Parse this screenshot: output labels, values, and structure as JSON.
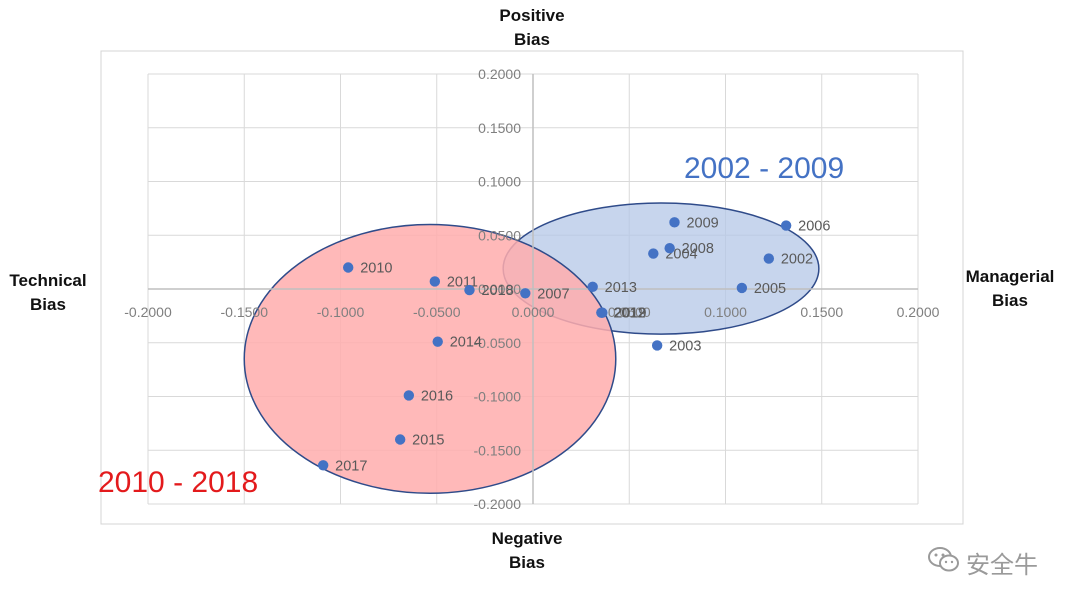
{
  "labels": {
    "top": "Positive\nBias",
    "bottom": "Negative\nBias",
    "left": "Technical\nBias",
    "right": "Managerial\nBias"
  },
  "watermark": {
    "text": "安全牛",
    "icon": "wechat-icon"
  },
  "chart_data": {
    "type": "scatter",
    "xlim": [
      -0.2,
      0.2
    ],
    "ylim": [
      -0.2,
      0.2
    ],
    "grid": true,
    "x_ticks": [
      "-0.2000",
      "-0.1500",
      "-0.1000",
      "-0.0500",
      "0.0000",
      "0.0500",
      "0.1000",
      "0.1500",
      "0.2000"
    ],
    "y_ticks": [
      "0.2000",
      "0.1500",
      "0.1000",
      "0.0500",
      "0.0000",
      "-0.0500",
      "-0.1000",
      "-0.1500",
      "-0.2000"
    ],
    "point_color": "#4472C4",
    "points": [
      {
        "label": "2002",
        "x": 0.1225,
        "y": 0.0283
      },
      {
        "label": "2003",
        "x": 0.0645,
        "y": -0.0525
      },
      {
        "label": "2004",
        "x": 0.0625,
        "y": 0.033
      },
      {
        "label": "2005",
        "x": 0.1085,
        "y": 0.001
      },
      {
        "label": "2006",
        "x": 0.1315,
        "y": 0.059
      },
      {
        "label": "2007",
        "x": -0.004,
        "y": -0.004
      },
      {
        "label": "2008",
        "x": 0.071,
        "y": 0.038
      },
      {
        "label": "2009",
        "x": 0.0735,
        "y": 0.062
      },
      {
        "label": "2010",
        "x": -0.096,
        "y": 0.02
      },
      {
        "label": "2011",
        "x": -0.051,
        "y": 0.007
      },
      {
        "label": "2012",
        "x": 0.0355,
        "y": -0.022
      },
      {
        "label": "2013",
        "x": 0.031,
        "y": 0.002
      },
      {
        "label": "2014",
        "x": -0.0495,
        "y": -0.049
      },
      {
        "label": "2015",
        "x": -0.069,
        "y": -0.14
      },
      {
        "label": "2016",
        "x": -0.0645,
        "y": -0.099
      },
      {
        "label": "2017",
        "x": -0.109,
        "y": -0.164
      },
      {
        "label": "2018",
        "x": -0.033,
        "y": -0.001
      },
      {
        "label": "2019",
        "x": 0.036,
        "y": -0.022
      }
    ],
    "groups": [
      {
        "name": "2002 - 2009",
        "fill": "#b4c7e7",
        "stroke": "#2f4b8a",
        "text_color": "#4472C4",
        "cx": 0.0665,
        "cy": 0.019,
        "rx": 0.082,
        "ry": 0.061
      },
      {
        "name": "2010 - 2018",
        "fill": "#ffadad",
        "stroke": "#2f4b8a",
        "text_color": "#e31a1c",
        "cx": -0.0535,
        "cy": -0.065,
        "rx": 0.0965,
        "ry": 0.125
      }
    ]
  }
}
